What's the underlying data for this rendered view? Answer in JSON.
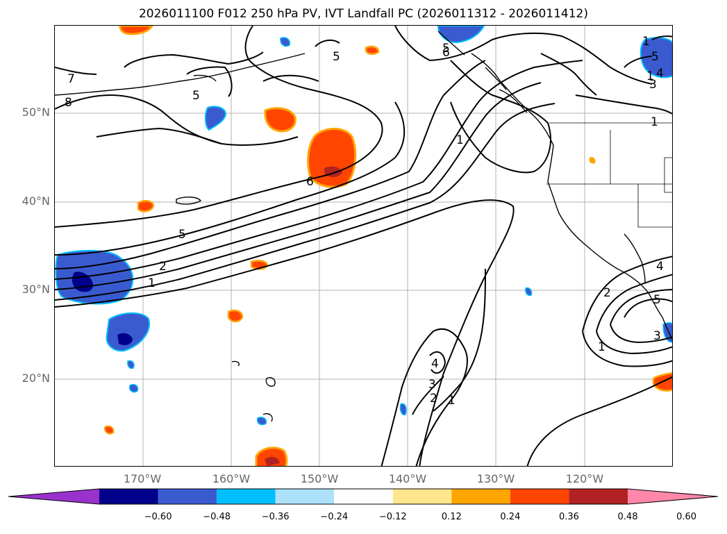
{
  "title": "2026011100 F012 250 hPa PV, IVT Landfall PC (2026011312 - 2026011412)",
  "axes": {
    "lat_labels": [
      "50°N",
      "40°N",
      "30°N",
      "20°N"
    ],
    "lon_labels": [
      "170°W",
      "160°W",
      "150°W",
      "140°W",
      "130°W",
      "120°W"
    ]
  },
  "contour_labels": [
    "7",
    "8",
    "5",
    "5",
    "5",
    "6",
    "6",
    "5",
    "2",
    "1",
    "1",
    "1",
    "1",
    "4",
    "3",
    "2",
    "1",
    "5",
    "4",
    "3",
    "1",
    "2",
    "4",
    "5",
    "3",
    "1"
  ],
  "colorbar": {
    "ticks": [
      "−0.60",
      "−0.48",
      "−0.36",
      "−0.24",
      "−0.12",
      "0.12",
      "0.24",
      "0.36",
      "0.48",
      "0.60"
    ],
    "colors": [
      "#9932CC",
      "#00008B",
      "#3A5BD0",
      "#00BFFF",
      "#ADE1FA",
      "#FFFFFF",
      "#FFE68C",
      "#FFA500",
      "#FF4500",
      "#B22222",
      "#FF88AA",
      "#FF88AA"
    ]
  }
}
